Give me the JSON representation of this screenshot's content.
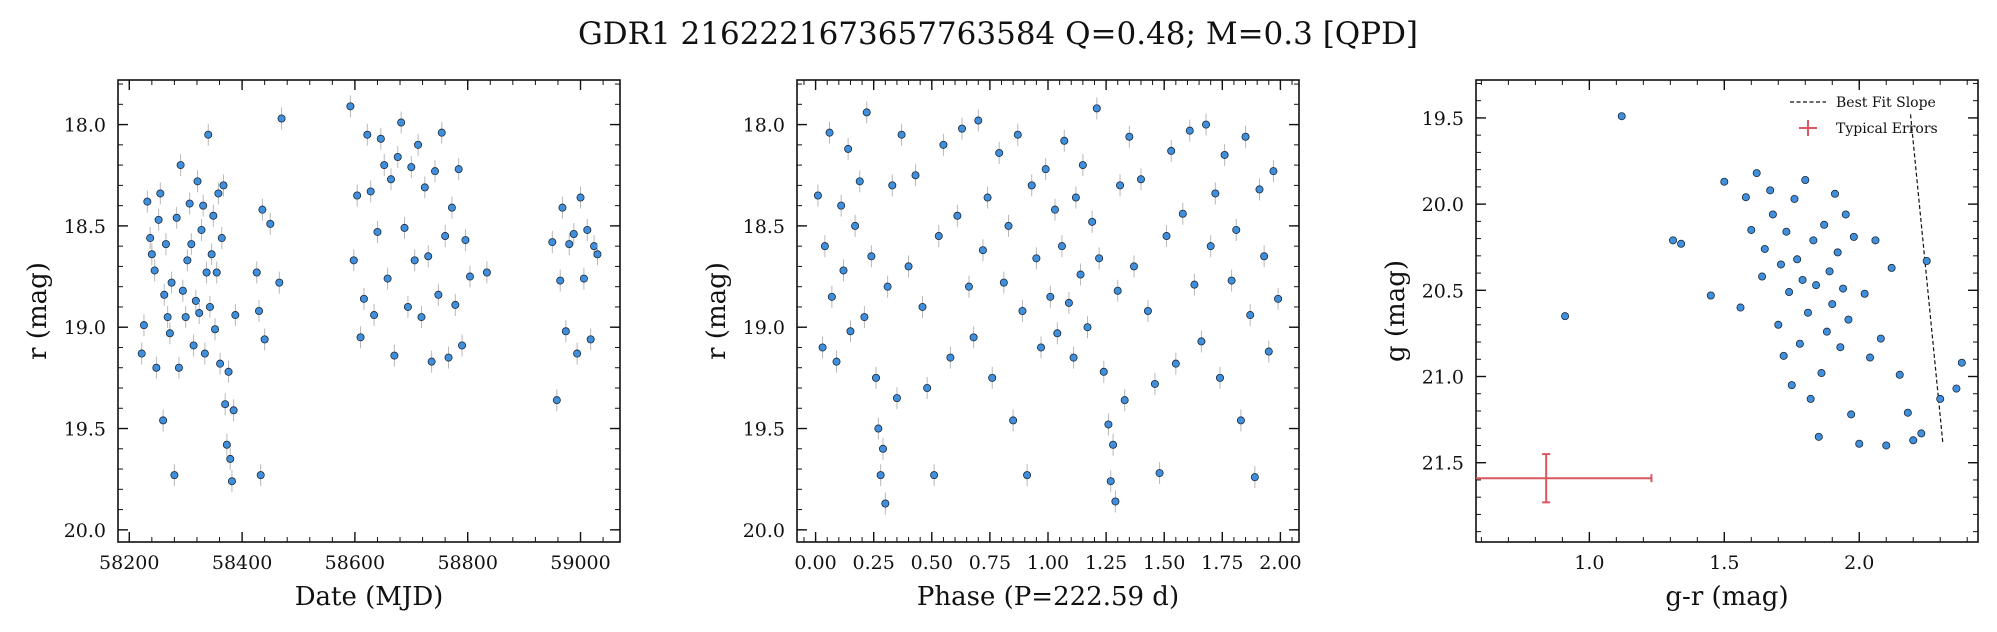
{
  "figure": {
    "title": "GDR1 2162221673657763584  Q=0.48; M=0.3 [QPD]"
  },
  "colors": {
    "marker_fill": "#3f8fdc",
    "marker_edge": "#1b2a3a",
    "errorbar": "#b8b8b8",
    "typical_error": "#d9575f",
    "fit_line": "#111111"
  },
  "chart_data": [
    {
      "type": "scatter",
      "panel": "light-curve",
      "xlabel": "Date (MJD)",
      "ylabel": "r (mag)",
      "xlim": [
        58180,
        59070
      ],
      "ylim": [
        20.06,
        17.78
      ],
      "y_inverted": true,
      "xticks": [
        58200,
        58400,
        58600,
        58800,
        59000
      ],
      "xtick_labels": [
        "58200",
        "58400",
        "58600",
        "58800",
        "59000"
      ],
      "yticks": [
        18.0,
        18.5,
        19.0,
        19.5,
        20.0
      ],
      "ytick_labels": [
        "18.0",
        "18.5",
        "19.0",
        "19.5",
        "20.0"
      ],
      "series": [
        {
          "marker": "circle",
          "x": [
            58222,
            58226,
            58232,
            58237,
            58240,
            58245,
            58248,
            58252,
            58255,
            58260,
            58262,
            58265,
            58268,
            58272,
            58275,
            58280,
            58284,
            58288,
            58291,
            58295,
            58300,
            58303,
            58307,
            58310,
            58314,
            58318,
            58321,
            58324,
            58328,
            58331,
            58334,
            58337,
            58340,
            58343,
            58346,
            58349,
            58352,
            58355,
            58358,
            58361,
            58364,
            58367,
            58370,
            58373,
            58376,
            58379,
            58382,
            58385,
            58388,
            58426,
            58430,
            58433,
            58436,
            58440,
            58450,
            58466,
            58470,
            58592,
            58598,
            58604,
            58610,
            58616,
            58622,
            58628,
            58634,
            58640,
            58646,
            58652,
            58658,
            58664,
            58670,
            58676,
            58682,
            58688,
            58694,
            58700,
            58706,
            58712,
            58718,
            58724,
            58730,
            58736,
            58742,
            58748,
            58754,
            58760,
            58766,
            58772,
            58778,
            58784,
            58790,
            58796,
            58804,
            58834,
            58950,
            58958,
            58964,
            58968,
            58974,
            58980,
            58988,
            58994,
            59000,
            59006,
            59012,
            59018,
            59024,
            59030
          ],
          "y": [
            19.13,
            18.99,
            18.38,
            18.56,
            18.64,
            18.72,
            19.2,
            18.47,
            18.34,
            19.46,
            18.84,
            18.59,
            18.95,
            19.03,
            18.78,
            19.73,
            18.46,
            19.2,
            18.2,
            18.82,
            18.95,
            18.67,
            18.39,
            18.59,
            19.09,
            18.87,
            18.28,
            18.93,
            18.52,
            18.4,
            19.13,
            18.73,
            18.05,
            18.9,
            18.64,
            18.45,
            19.01,
            18.73,
            18.34,
            19.18,
            18.56,
            18.3,
            19.38,
            19.58,
            19.22,
            19.65,
            19.76,
            19.41,
            18.94,
            18.73,
            18.92,
            19.73,
            18.42,
            19.06,
            18.49,
            18.78,
            17.97,
            17.91,
            18.67,
            18.35,
            19.05,
            18.86,
            18.05,
            18.33,
            18.94,
            18.53,
            18.07,
            18.2,
            18.76,
            18.27,
            19.14,
            18.16,
            17.99,
            18.51,
            18.9,
            18.21,
            18.67,
            18.1,
            18.95,
            18.31,
            18.65,
            19.17,
            18.23,
            18.84,
            18.04,
            18.55,
            19.15,
            18.41,
            18.89,
            18.22,
            19.09,
            18.57,
            18.75,
            18.73,
            18.58,
            19.36,
            18.77,
            18.41,
            19.02,
            18.59,
            18.54,
            19.13,
            18.36,
            18.76,
            18.52,
            19.06,
            18.6,
            18.64
          ]
        }
      ]
    },
    {
      "type": "scatter",
      "panel": "phase-curve",
      "xlabel": "Phase (P=222.59 d)",
      "ylabel": "r (mag)",
      "xlim": [
        -0.08,
        2.08
      ],
      "ylim": [
        20.06,
        17.78
      ],
      "y_inverted": true,
      "xticks": [
        0.0,
        0.25,
        0.5,
        0.75,
        1.0,
        1.25,
        1.5,
        1.75,
        2.0
      ],
      "xtick_labels": [
        "0.00",
        "0.25",
        "0.50",
        "0.75",
        "1.00",
        "1.25",
        "1.50",
        "1.75",
        "2.00"
      ],
      "yticks": [
        18.0,
        18.5,
        19.0,
        19.5,
        20.0
      ],
      "ytick_labels": [
        "18.0",
        "18.5",
        "19.0",
        "19.5",
        "20.0"
      ],
      "series": [
        {
          "marker": "circle",
          "x": [
            0.01,
            0.03,
            0.04,
            0.06,
            0.07,
            0.09,
            0.11,
            0.12,
            0.14,
            0.15,
            0.17,
            0.19,
            0.21,
            0.22,
            0.24,
            0.26,
            0.27,
            0.28,
            0.29,
            0.3,
            0.31,
            0.33,
            0.35,
            0.37,
            0.4,
            0.43,
            0.46,
            0.48,
            0.51,
            0.53,
            0.55,
            0.58,
            0.61,
            0.63,
            0.66,
            0.68,
            0.7,
            0.72,
            0.74,
            0.76,
            0.79,
            0.81,
            0.83,
            0.85,
            0.87,
            0.89,
            0.91,
            0.93,
            0.95,
            0.97,
            0.99,
            1.01,
            1.03,
            1.04,
            1.06,
            1.07,
            1.09,
            1.11,
            1.12,
            1.14,
            1.15,
            1.17,
            1.19,
            1.21,
            1.22,
            1.24,
            1.26,
            1.27,
            1.28,
            1.29,
            1.3,
            1.31,
            1.33,
            1.35,
            1.37,
            1.4,
            1.43,
            1.46,
            1.48,
            1.51,
            1.53,
            1.55,
            1.58,
            1.61,
            1.63,
            1.66,
            1.68,
            1.7,
            1.72,
            1.74,
            1.76,
            1.79,
            1.81,
            1.83,
            1.85,
            1.87,
            1.89,
            1.91,
            1.93,
            1.95,
            1.97,
            1.99
          ],
          "y": [
            18.35,
            19.1,
            18.6,
            18.04,
            18.85,
            19.17,
            18.4,
            18.72,
            18.12,
            19.02,
            18.5,
            18.28,
            18.95,
            17.94,
            18.65,
            19.25,
            19.5,
            19.73,
            19.6,
            19.87,
            18.8,
            18.3,
            19.35,
            18.05,
            18.7,
            18.25,
            18.9,
            19.3,
            19.73,
            18.55,
            18.1,
            19.15,
            18.45,
            18.02,
            18.8,
            19.05,
            17.98,
            18.62,
            18.36,
            19.25,
            18.14,
            18.78,
            18.5,
            19.46,
            18.05,
            18.92,
            19.73,
            18.3,
            18.66,
            19.1,
            18.22,
            18.85,
            18.42,
            19.03,
            18.6,
            18.08,
            18.88,
            19.15,
            18.36,
            18.74,
            18.2,
            19.0,
            18.48,
            17.92,
            18.66,
            19.22,
            19.48,
            19.76,
            19.58,
            19.86,
            18.82,
            18.3,
            19.36,
            18.06,
            18.7,
            18.27,
            18.92,
            19.28,
            19.72,
            18.55,
            18.13,
            19.18,
            18.44,
            18.03,
            18.79,
            19.07,
            18.0,
            18.6,
            18.34,
            19.25,
            18.15,
            18.77,
            18.52,
            19.46,
            18.06,
            18.94,
            19.74,
            18.32,
            18.65,
            19.12,
            18.23,
            18.86
          ]
        }
      ]
    },
    {
      "type": "scatter",
      "panel": "color-magnitude",
      "xlabel": "g-r (mag)",
      "ylabel": "g (mag)",
      "xlim": [
        0.58,
        2.44
      ],
      "ylim": [
        21.96,
        19.28
      ],
      "y_inverted": true,
      "xticks": [
        1.0,
        1.5,
        2.0
      ],
      "xtick_labels": [
        "1.0",
        "1.5",
        "2.0"
      ],
      "yticks": [
        19.5,
        20.0,
        20.5,
        21.0,
        21.5
      ],
      "ytick_labels": [
        "19.5",
        "20.0",
        "20.5",
        "21.0",
        "21.5"
      ],
      "series": [
        {
          "marker": "circle",
          "x": [
            1.12,
            0.91,
            1.31,
            1.34,
            1.45,
            1.5,
            1.56,
            1.58,
            1.6,
            1.62,
            1.64,
            1.65,
            1.67,
            1.68,
            1.7,
            1.71,
            1.72,
            1.73,
            1.74,
            1.75,
            1.76,
            1.77,
            1.78,
            1.79,
            1.8,
            1.81,
            1.82,
            1.83,
            1.84,
            1.85,
            1.86,
            1.87,
            1.88,
            1.89,
            1.9,
            1.91,
            1.92,
            1.93,
            1.94,
            1.95,
            1.96,
            1.97,
            1.98,
            2.0,
            2.02,
            2.04,
            2.06,
            2.08,
            2.1,
            2.12,
            2.15,
            2.18,
            2.2,
            2.23,
            2.25,
            2.3,
            2.36,
            2.38
          ],
          "y": [
            19.49,
            20.65,
            20.21,
            20.23,
            20.53,
            19.87,
            20.6,
            19.96,
            20.15,
            19.82,
            20.42,
            20.26,
            19.92,
            20.06,
            20.7,
            20.35,
            20.88,
            20.16,
            20.51,
            21.05,
            19.97,
            20.32,
            20.81,
            20.44,
            19.86,
            20.63,
            21.13,
            20.21,
            20.47,
            21.35,
            20.98,
            20.12,
            20.74,
            20.39,
            20.58,
            19.94,
            20.28,
            20.83,
            20.49,
            20.06,
            20.67,
            21.22,
            20.19,
            21.39,
            20.52,
            20.89,
            20.21,
            20.78,
            21.4,
            20.37,
            20.99,
            21.21,
            21.37,
            21.33,
            20.33,
            21.13,
            21.07,
            20.92
          ]
        }
      ],
      "fit_line": {
        "label": "Best Fit Slope",
        "x": [
          2.19,
          2.31
        ],
        "y": [
          19.48,
          21.39
        ]
      },
      "typical_errors": {
        "label": "Typical Errors",
        "x": 0.84,
        "y": 21.59,
        "xerr": 0.39,
        "yerr": 0.14
      },
      "legend_position": "top-right"
    }
  ]
}
